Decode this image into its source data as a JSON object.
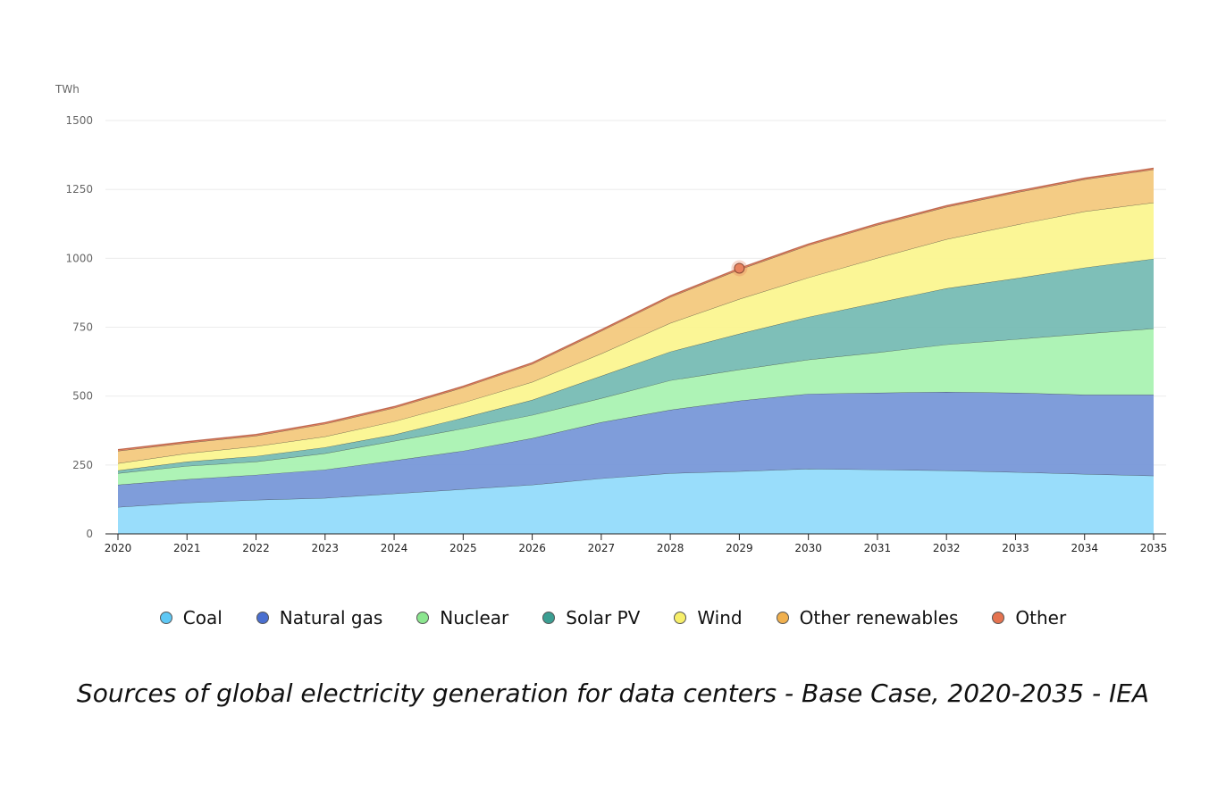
{
  "chart_data": {
    "type": "area",
    "stacked": true,
    "title": "Sources of global electricity generation for data centers - Base Case, 2020-2035 - IEA",
    "ylabel": "TWh",
    "xlabel": "",
    "ylim": [
      0,
      1500
    ],
    "yticks": [
      "0",
      "250",
      "500",
      "750",
      "1000",
      "1250",
      "1500"
    ],
    "grid": true,
    "legend_position": "bottom",
    "x": [
      "2020",
      "2021",
      "2022",
      "2023",
      "2024",
      "2025",
      "2026",
      "2027",
      "2028",
      "2029",
      "2030",
      "2031",
      "2032",
      "2033",
      "2034",
      "2035"
    ],
    "series": [
      {
        "name": "Coal",
        "color": "#94dbfb",
        "marker": "#5ec8f5",
        "values": [
          97,
          113,
          123,
          130,
          146,
          162,
          178,
          201,
          220,
          227,
          236,
          233,
          230,
          224,
          217,
          211
        ]
      },
      {
        "name": "Natural gas",
        "color": "#7898d8",
        "marker": "#4a6fd0",
        "values": [
          81,
          85,
          91,
          103,
          120,
          139,
          169,
          204,
          230,
          256,
          272,
          279,
          285,
          288,
          288,
          294
        ]
      },
      {
        "name": "Nuclear",
        "color": "#aaf2b2",
        "marker": "#8be68f",
        "values": [
          42,
          48,
          48,
          59,
          71,
          81,
          84,
          87,
          107,
          113,
          124,
          146,
          172,
          194,
          221,
          240
        ]
      },
      {
        "name": "Solar PV",
        "color": "#77bcb4",
        "marker": "#3b9e92",
        "values": [
          10,
          16,
          20,
          22,
          23,
          39,
          55,
          81,
          104,
          130,
          155,
          181,
          204,
          221,
          240,
          253
        ]
      },
      {
        "name": "Wind",
        "color": "#fbf690",
        "marker": "#f7ef6a",
        "values": [
          26,
          30,
          36,
          39,
          48,
          55,
          65,
          81,
          104,
          126,
          143,
          162,
          178,
          194,
          204,
          204
        ]
      },
      {
        "name": "Other renewables",
        "color": "#f3c97e",
        "marker": "#f0b04e",
        "values": [
          45,
          38,
          38,
          46,
          49,
          55,
          65,
          82,
          94,
          107,
          117,
          120,
          117,
          117,
          116,
          120
        ]
      },
      {
        "name": "Other",
        "color": "#e8825e",
        "marker": "#e57350",
        "values": [
          5,
          5,
          5,
          5,
          5,
          5,
          5,
          5,
          5,
          5,
          5,
          5,
          5,
          5,
          5,
          5
        ]
      }
    ],
    "highlighted_point": {
      "series": "Other",
      "x": "2029"
    }
  }
}
